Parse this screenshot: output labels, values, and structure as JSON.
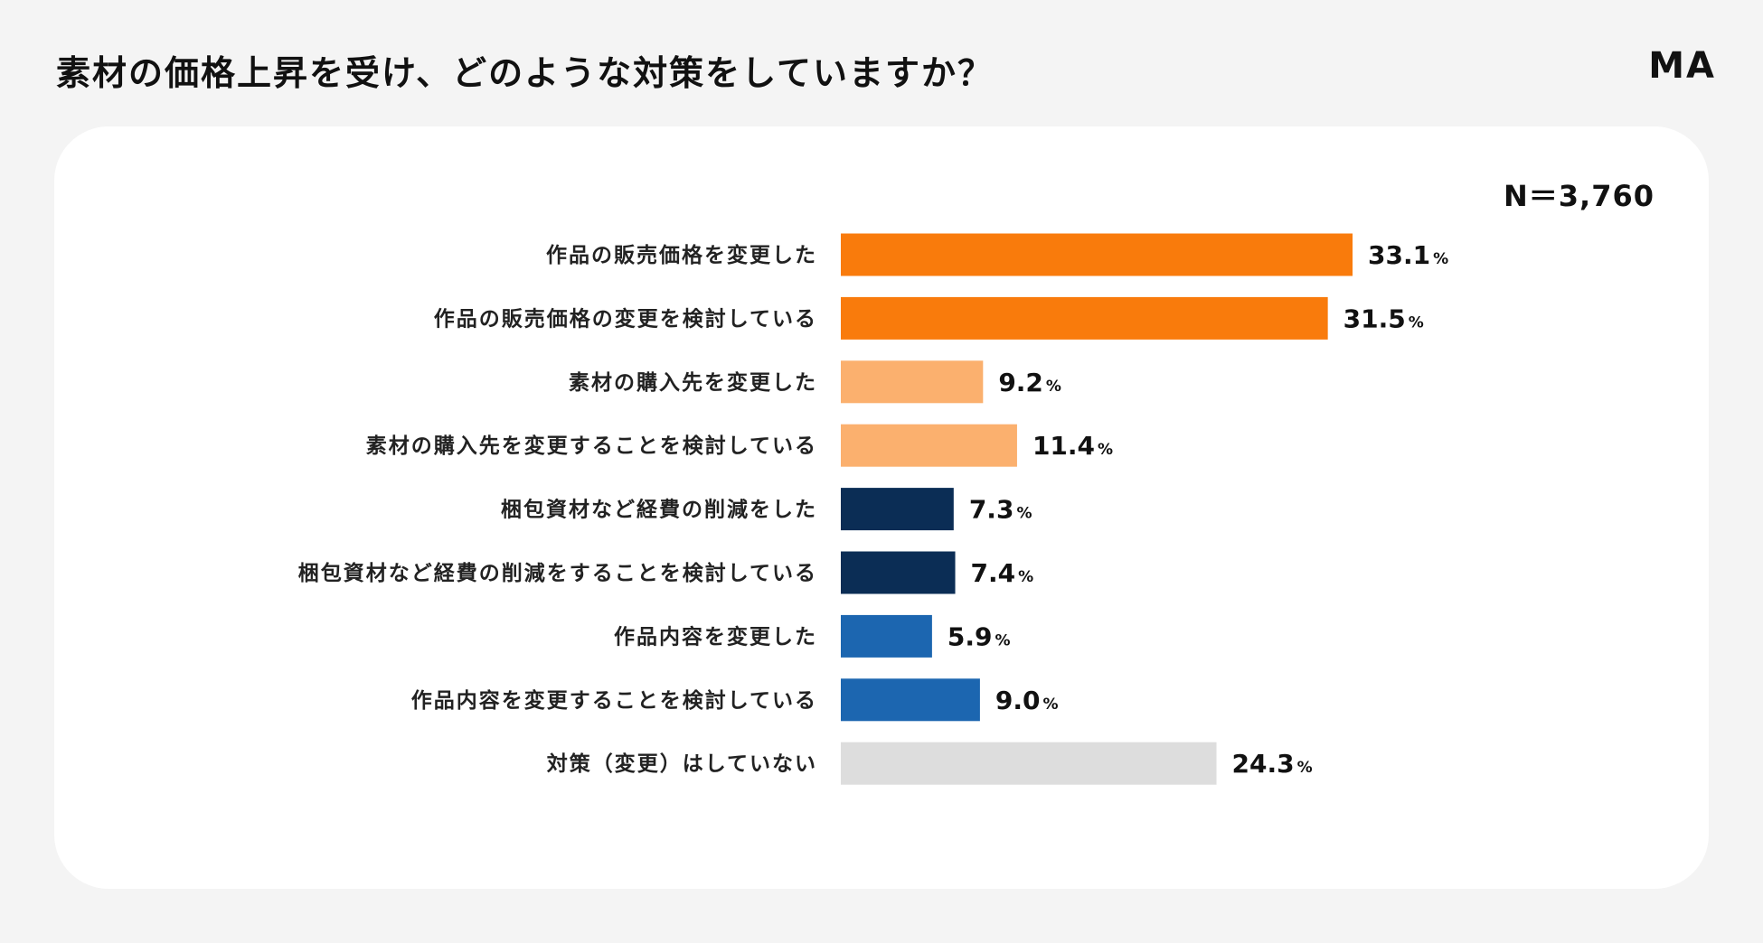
{
  "title": "素材の価格上昇を受け、どのような対策をしていますか？",
  "brand": "MA",
  "sample_size": "N＝3,760",
  "colors": {
    "background": "#f4f4f4",
    "card": "#ffffff",
    "orange": "#f97b0c",
    "light_orange": "#fbb06e",
    "navy": "#0b2d55",
    "blue": "#1c66b0",
    "gray": "#dddddd"
  },
  "chart_data": {
    "type": "bar",
    "orientation": "horizontal",
    "title": "素材の価格上昇を受け、どのような対策をしていますか？",
    "note": "N＝3,760",
    "unit": "%",
    "xlim": [
      0,
      40
    ],
    "grid": false,
    "categories": [
      "作品の販売価格を変更した",
      "作品の販売価格の変更を検討している",
      "素材の購入先を変更した",
      "素材の購入先を変更することを検討している",
      "梱包資材など経費の削減をした",
      "梱包資材など経費の削減をすることを検討している",
      "作品内容を変更した",
      "作品内容を変更することを検討している",
      "対策（変更）はしていない"
    ],
    "values": [
      33.1,
      31.5,
      9.2,
      11.4,
      7.3,
      7.4,
      5.9,
      9.0,
      24.3
    ],
    "value_labels": [
      "33.1",
      "31.5",
      "9.2",
      "11.4",
      "7.3",
      "7.4",
      "5.9",
      "9.0",
      "24.3"
    ],
    "bar_colors": [
      "#f97b0c",
      "#f97b0c",
      "#fbb06e",
      "#fbb06e",
      "#0b2d55",
      "#0b2d55",
      "#1c66b0",
      "#1c66b0",
      "#dddddd"
    ]
  }
}
